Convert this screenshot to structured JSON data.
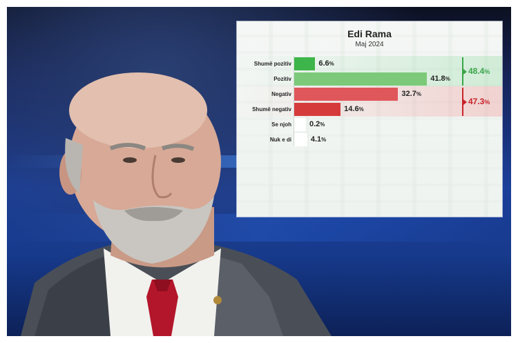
{
  "chart_data": {
    "type": "bar",
    "orientation": "horizontal",
    "title": "Edi Rama",
    "subtitle": "Maj 2024",
    "categories": [
      "Shumë pozitiv",
      "Pozitiv",
      "Negativ",
      "Shumë negativ",
      "Se njoh",
      "Nuk e di"
    ],
    "values": [
      6.6,
      41.8,
      32.7,
      14.6,
      0.2,
      4.1
    ],
    "value_labels": [
      "6.6",
      "41.8",
      "32.7",
      "14.6",
      "0.2",
      "4.1"
    ],
    "unit": "%",
    "xlim": [
      0,
      60
    ],
    "bar_colors": [
      "#3db54a",
      "#7cca79",
      "#e0575b",
      "#d63b3b",
      "#ffffff",
      "#ffffff"
    ],
    "groups": [
      {
        "members": [
          0,
          1
        ],
        "total_label": "48.4",
        "color": "#3aa54a"
      },
      {
        "members": [
          2,
          3
        ],
        "total_label": "47.3",
        "color": "#c8242a"
      }
    ],
    "grid": false,
    "legend": "none"
  }
}
